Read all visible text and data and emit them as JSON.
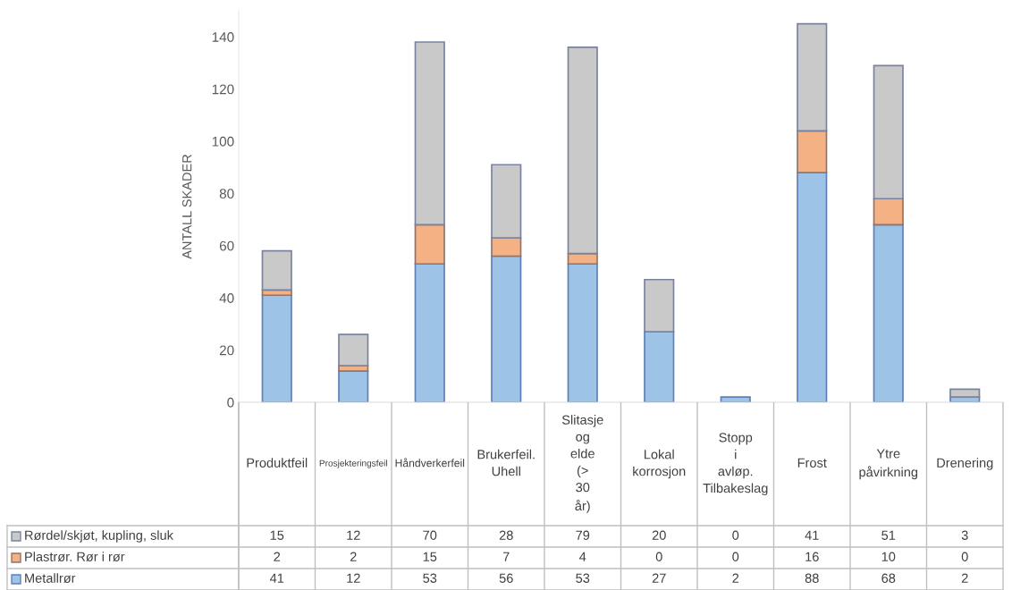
{
  "chart_data": {
    "type": "bar",
    "stacked": true,
    "ylabel": "ANTALL SKADER",
    "categories": [
      "Produktfeil",
      "Prosjekteringsfeil",
      "Håndverkerfeil",
      "Brukerfeil. Uhell",
      "Slitasje og elde (> 30 år)",
      "Lokal korrosjon",
      "Stopp i avløp. Tilbakeslag",
      "Frost",
      "Ytre påvirkning",
      "Drenering"
    ],
    "series": [
      {
        "name": "Metallrør",
        "color": "#9dc3e6",
        "values": [
          41,
          12,
          53,
          56,
          53,
          27,
          2,
          88,
          68,
          2
        ]
      },
      {
        "name": "Plastrør. Rør i rør",
        "color": "#f4b183",
        "values": [
          2,
          2,
          15,
          7,
          4,
          0,
          0,
          16,
          10,
          0
        ]
      },
      {
        "name": "Rørdel/skjøt, kupling, sluk",
        "color": "#c9c9c9",
        "values": [
          15,
          12,
          70,
          28,
          79,
          20,
          0,
          41,
          51,
          3
        ]
      }
    ],
    "ylim": [
      0,
      150
    ],
    "yticks": [
      0,
      20,
      40,
      60,
      80,
      100,
      120,
      140
    ],
    "grid": false,
    "legend": "bottom left",
    "data_labels": true
  }
}
